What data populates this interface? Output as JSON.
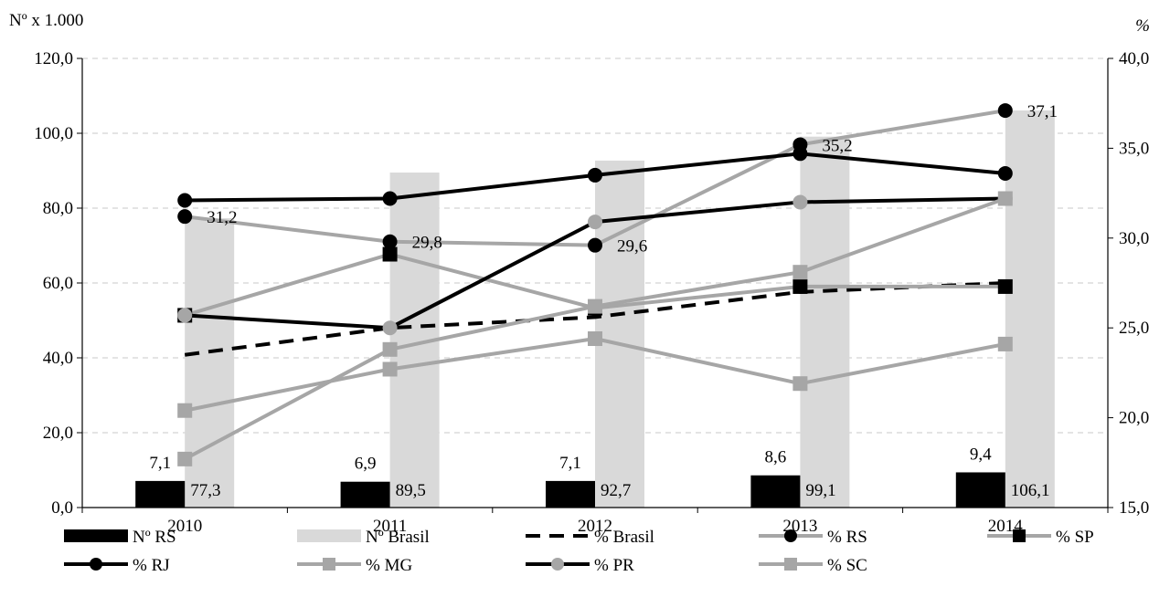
{
  "chart_data": {
    "type": "bar",
    "categories": [
      "2010",
      "2011",
      "2012",
      "2013",
      "2014"
    ],
    "left_axis": {
      "label": "Nº x 1.000",
      "ylim": [
        0,
        120
      ],
      "ticks": [
        0,
        20,
        40,
        60,
        80,
        100,
        120
      ],
      "tick_labels": [
        "0,0",
        "20,0",
        "40,0",
        "60,0",
        "80,0",
        "100,0",
        "120,0"
      ]
    },
    "right_axis": {
      "label": "%",
      "ylim": [
        15,
        40
      ],
      "ticks": [
        15,
        20,
        25,
        30,
        35,
        40
      ],
      "tick_labels": [
        "15,0",
        "20,0",
        "25,0",
        "30,0",
        "35,0",
        "40,0"
      ]
    },
    "grid": true,
    "legend_position": "bottom",
    "bar_series": [
      {
        "name": "Nº Brasil",
        "color": "#d9d9d9",
        "values": [
          77.3,
          89.5,
          92.7,
          99.1,
          106.1
        ],
        "labels": [
          "77,3",
          "89,5",
          "92,7",
          "99,1",
          "106,1"
        ]
      },
      {
        "name": "Nº RS",
        "color": "#000000",
        "values": [
          7.1,
          6.9,
          7.1,
          8.6,
          9.4
        ],
        "labels": [
          "7,1",
          "6,9",
          "7,1",
          "8,6",
          "9,4"
        ]
      }
    ],
    "line_series": [
      {
        "name": "% Brasil",
        "color": "#000000",
        "dash": true,
        "marker": "none",
        "values": [
          23.5,
          25.0,
          25.6,
          27.0,
          27.5
        ]
      },
      {
        "name": "% RS",
        "color": "#a6a6a6",
        "marker": "circle",
        "marker_color": "#000000",
        "values": [
          31.2,
          29.8,
          29.6,
          35.2,
          37.1
        ],
        "labels": [
          "31,2",
          "29,8",
          "29,6",
          "35,2",
          "37,1"
        ]
      },
      {
        "name": "% SP",
        "color": "#a6a6a6",
        "marker": "square",
        "marker_color": "#000000",
        "values": [
          25.7,
          29.1,
          26.1,
          27.3,
          27.3
        ]
      },
      {
        "name": "% RJ",
        "color": "#000000",
        "marker": "circle",
        "marker_color": "#000000",
        "values": [
          32.1,
          32.2,
          33.5,
          34.7,
          33.6
        ]
      },
      {
        "name": "% MG",
        "color": "#a6a6a6",
        "marker": "square",
        "marker_color": "#a6a6a6",
        "values": [
          20.4,
          22.7,
          24.4,
          21.9,
          24.1
        ]
      },
      {
        "name": "% PR",
        "color": "#000000",
        "marker": "circle",
        "marker_color": "#a6a6a6",
        "values": [
          25.7,
          25.0,
          30.9,
          32.0,
          32.2
        ]
      },
      {
        "name": "% SC",
        "color": "#a6a6a6",
        "marker": "square",
        "marker_color": "#a6a6a6",
        "values": [
          17.7,
          23.8,
          26.2,
          28.1,
          32.2
        ]
      }
    ],
    "legend": [
      "Nº RS",
      "Nº Brasil",
      "% Brasil",
      "% RS",
      "% SP",
      "% RJ",
      "% MG",
      "% PR",
      "% SC"
    ]
  }
}
